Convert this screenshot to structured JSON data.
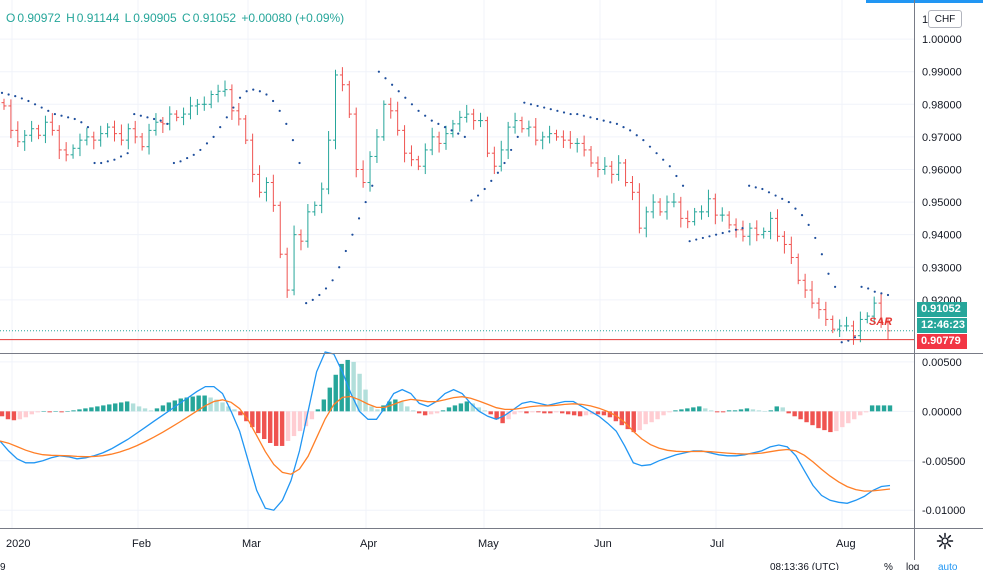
{
  "ohlc": {
    "open_label": "O",
    "open": "0.90972",
    "high_label": "H",
    "high": "0.91144",
    "low_label": "L",
    "low": "0.90905",
    "close_label": "C",
    "close": "0.91052",
    "change": "+0.00080 (+0.09%)"
  },
  "currency_button": "CHF",
  "price_axis": {
    "ticks": [
      "1.00000",
      "0.99000",
      "0.98000",
      "0.97000",
      "0.96000",
      "0.95000",
      "0.94000",
      "0.93000",
      "0.92000"
    ],
    "top_partial": "1."
  },
  "macd_axis": {
    "ticks": [
      "0.00500",
      "0.00000",
      "-0.00500",
      "-0.01000"
    ]
  },
  "badges": {
    "last_price": "0.91052",
    "countdown": "12:46:23",
    "sar_value": "0.90779"
  },
  "sar_label": "SAR",
  "time_axis": [
    "2020",
    "Feb",
    "Mar",
    "Apr",
    "May",
    "Jun",
    "Jul",
    "Aug"
  ],
  "bottom_bar": {
    "left": "9",
    "clock": "08:13:36 (UTC)",
    "percent": "%",
    "log": "log",
    "auto": "auto"
  },
  "colors": {
    "up": "#26a69a",
    "down": "#ef5350",
    "sar": "#1e4e9c",
    "macd": "#2196f3",
    "signal": "#ff7f27",
    "hist_up_strong": "#26a69a",
    "hist_up_weak": "#b2dfdb",
    "hist_down_strong": "#ef5350",
    "hist_down_weak": "#ffcdd2",
    "sar_line": "#e53935"
  },
  "chart_data": [
    {
      "type": "candlestick",
      "title": "",
      "x_ticks": [
        "2020",
        "Feb",
        "Mar",
        "Apr",
        "May",
        "Jun",
        "Jul",
        "Aug"
      ],
      "y_ticks": [
        1.0,
        0.99,
        0.98,
        0.97,
        0.96,
        0.95,
        0.94,
        0.93,
        0.92
      ],
      "ylim": [
        0.904,
        1.012
      ],
      "last_price": 0.91052,
      "sar_value": 0.90779,
      "closes": [
        0.9795,
        0.972,
        0.9685,
        0.9705,
        0.9725,
        0.9705,
        0.9745,
        0.972,
        0.966,
        0.9645,
        0.9665,
        0.969,
        0.97,
        0.969,
        0.971,
        0.973,
        0.971,
        0.969,
        0.9725,
        0.97,
        0.967,
        0.972,
        0.9745,
        0.974,
        0.977,
        0.976,
        0.977,
        0.9795,
        0.98,
        0.98,
        0.983,
        0.984,
        0.9845,
        0.978,
        0.9755,
        0.969,
        0.9585,
        0.953,
        0.956,
        0.949,
        0.934,
        0.923,
        0.94,
        0.938,
        0.947,
        0.949,
        0.954,
        0.969,
        0.989,
        0.986,
        0.977,
        0.96,
        0.956,
        0.964,
        0.97,
        0.98,
        0.978,
        0.972,
        0.965,
        0.963,
        0.961,
        0.966,
        0.97,
        0.968,
        0.971,
        0.974,
        0.976,
        0.977,
        0.975,
        0.975,
        0.965,
        0.961,
        0.966,
        0.973,
        0.975,
        0.9725,
        0.973,
        0.969,
        0.97,
        0.971,
        0.97,
        0.969,
        0.968,
        0.968,
        0.966,
        0.962,
        0.96,
        0.961,
        0.9585,
        0.962,
        0.956,
        0.953,
        0.942,
        0.947,
        0.95,
        0.947,
        0.95,
        0.95,
        0.945,
        0.944,
        0.947,
        0.947,
        0.951,
        0.946,
        0.946,
        0.943,
        0.9415,
        0.9395,
        0.942,
        0.94,
        0.941,
        0.945,
        0.9395,
        0.937,
        0.933,
        0.926,
        0.923,
        0.919,
        0.917,
        0.914,
        0.911,
        0.912,
        0.912,
        0.909,
        0.914,
        0.915,
        0.919,
        0.913,
        0.9105
      ],
      "sar": [
        0.9835,
        0.983,
        0.9825,
        0.9818,
        0.981,
        0.98,
        0.979,
        0.978,
        0.977,
        0.9765,
        0.976,
        0.9755,
        0.9745,
        0.973,
        0.962,
        0.962,
        0.9625,
        0.963,
        0.964,
        0.965,
        0.977,
        0.9765,
        0.976,
        0.9755,
        0.975,
        0.974,
        0.962,
        0.9625,
        0.9635,
        0.9645,
        0.966,
        0.968,
        0.97,
        0.973,
        0.976,
        0.979,
        0.982,
        0.984,
        0.9845,
        0.984,
        0.983,
        0.981,
        0.978,
        0.974,
        0.969,
        0.962,
        0.919,
        0.92,
        0.9215,
        0.9235,
        0.926,
        0.93,
        0.935,
        0.94,
        0.945,
        0.95,
        0.955,
        0.99,
        0.988,
        0.986,
        0.984,
        0.982,
        0.98,
        0.978,
        0.9765,
        0.975,
        0.974,
        0.973,
        0.972,
        0.971,
        0.97,
        0.9505,
        0.952,
        0.954,
        0.9565,
        0.959,
        0.962,
        0.966,
        0.97,
        0.9805,
        0.98,
        0.9795,
        0.979,
        0.9785,
        0.978,
        0.9775,
        0.977,
        0.977,
        0.9765,
        0.976,
        0.9755,
        0.975,
        0.9745,
        0.974,
        0.973,
        0.972,
        0.9705,
        0.969,
        0.967,
        0.965,
        0.963,
        0.961,
        0.958,
        0.955,
        0.938,
        0.9385,
        0.939,
        0.9395,
        0.94,
        0.9405,
        0.941,
        0.9415,
        0.942,
        0.955,
        0.9545,
        0.954,
        0.953,
        0.952,
        0.951,
        0.95,
        0.948,
        0.946,
        0.943,
        0.939,
        0.934,
        0.928,
        0.924,
        0.907,
        0.9075,
        0.9085,
        0.924,
        0.9235,
        0.9225,
        0.922,
        0.9215
      ]
    },
    {
      "type": "bar",
      "title": "",
      "y_ticks": [
        0.005,
        0.0,
        -0.005,
        -0.01
      ],
      "ylim": [
        -0.0118,
        0.0058
      ],
      "macd_histogram": [
        -0.0005,
        -0.0008,
        -0.0009,
        -0.0008,
        -0.0006,
        -0.0003,
        -0.0001,
        0.0,
        -0.0001,
        0.0,
        -0.0001,
        0.0,
        0.0001,
        0.0002,
        0.0003,
        0.0004,
        0.0005,
        0.0006,
        0.0007,
        0.0008,
        0.0009,
        0.001,
        0.0008,
        0.0005,
        0.0003,
        0.0001,
        0.0003,
        0.0006,
        0.0009,
        0.0011,
        0.0013,
        0.0014,
        0.0015,
        0.0016,
        0.0016,
        0.0014,
        0.0012,
        0.0009,
        0.0005,
        0.0002,
        -0.0004,
        -0.001,
        -0.0016,
        -0.0022,
        -0.0028,
        -0.0032,
        -0.0035,
        -0.0035,
        -0.003,
        -0.0025,
        -0.002,
        -0.0015,
        -0.0008,
        0.0002,
        0.0012,
        0.0024,
        0.0037,
        0.0048,
        0.0052,
        0.005,
        0.0038,
        0.0022,
        0.0005,
        0.0002,
        0.0006,
        0.001,
        0.0012,
        0.001,
        0.0005,
        0.0001,
        -0.0002,
        -0.0004,
        -0.0003,
        -0.0002,
        0.0001,
        0.0004,
        0.0006,
        0.0008,
        0.001,
        0.0008,
        0.0004,
        0.0001,
        -0.0003,
        -0.0008,
        -0.0012,
        -0.0008,
        -0.0003,
        -0.0001,
        -0.0002,
        -0.0001,
        -0.0001,
        -0.0002,
        -0.0002,
        -0.0001,
        -0.0002,
        -0.0003,
        -0.0004,
        -0.0005,
        -0.0004,
        -0.0003,
        -0.0003,
        -0.0004,
        -0.0006,
        -0.001,
        -0.0014,
        -0.0018,
        -0.0021,
        -0.0019,
        -0.0013,
        -0.0011,
        -0.0008,
        -0.0004,
        -0.0001,
        0.0001,
        0.0002,
        0.0003,
        0.0004,
        0.0005,
        0.0003,
        0.0001,
        -0.0001,
        -0.0001,
        0.0001,
        0.0001,
        0.0002,
        0.0003,
        0.0002,
        0.0001,
        0.0,
        0.0001,
        0.0005,
        0.0004,
        -0.0002,
        -0.0005,
        -0.0008,
        -0.0011,
        -0.0014,
        -0.0017,
        -0.0019,
        -0.0021,
        -0.002,
        -0.0016,
        -0.0012,
        -0.0008,
        -0.0004,
        -0.0001,
        0.0006,
        0.0006,
        0.0006,
        0.0006
      ],
      "macd": [
        -0.003,
        -0.004,
        -0.0048,
        -0.0052,
        -0.0052,
        -0.005,
        -0.0047,
        -0.0045,
        -0.0046,
        -0.0048,
        -0.0047,
        -0.0045,
        -0.0042,
        -0.0038,
        -0.0033,
        -0.0028,
        -0.0022,
        -0.0016,
        -0.001,
        -0.0004,
        0.0002,
        0.0008,
        0.0014,
        0.002,
        0.0025,
        0.0025,
        0.0018,
        0.0,
        -0.002,
        -0.005,
        -0.008,
        -0.0098,
        -0.01,
        -0.009,
        -0.007,
        -0.004,
        0.0,
        0.004,
        0.006,
        0.0058,
        0.004,
        0.0018,
        0.0,
        -0.0008,
        -0.0008,
        0.0004,
        0.0018,
        0.0022,
        0.0018,
        0.0008,
        0.0005,
        0.001,
        0.0018,
        0.0022,
        0.0018,
        0.0008,
        0.0,
        -0.0005,
        -0.0008,
        -0.0004,
        0.0002,
        0.0008,
        0.001,
        0.0008,
        0.0006,
        0.0008,
        0.001,
        0.001,
        0.0005,
        0.0,
        -0.0005,
        -0.0012,
        -0.002,
        -0.0035,
        -0.0052,
        -0.0055,
        -0.0054,
        -0.005,
        -0.0047,
        -0.0044,
        -0.0042,
        -0.004,
        -0.004,
        -0.0042,
        -0.0044,
        -0.0045,
        -0.0045,
        -0.0044,
        -0.0042,
        -0.004,
        -0.0036,
        -0.0034,
        -0.0036,
        -0.0045,
        -0.006,
        -0.0075,
        -0.0085,
        -0.009,
        -0.0092,
        -0.0093,
        -0.009,
        -0.0086,
        -0.008,
        -0.0076,
        -0.0075
      ]
    }
  ]
}
